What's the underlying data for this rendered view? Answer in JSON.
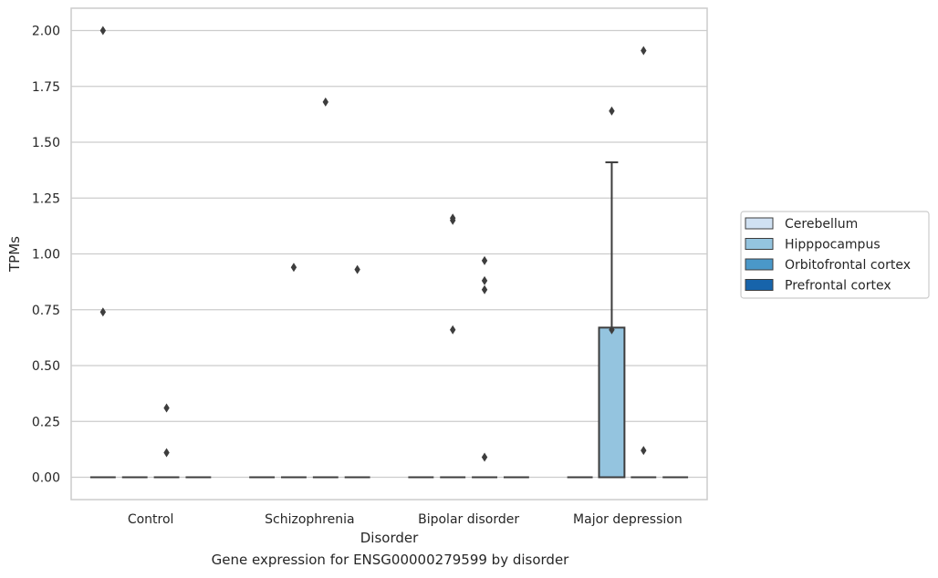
{
  "chart_data": {
    "type": "box",
    "title": "",
    "caption": "Gene expression for ENSG00000279599 by disorder",
    "xlabel": "Disorder",
    "ylabel": "TPMs",
    "categories": [
      "Control",
      "Schizophrenia",
      "Bipolar disorder",
      "Major depression"
    ],
    "ylim": [
      -0.1,
      2.1
    ],
    "yticks": [
      0.0,
      0.25,
      0.5,
      0.75,
      1.0,
      1.25,
      1.5,
      1.75,
      2.0
    ],
    "ytick_labels": [
      "0.00",
      "0.25",
      "0.50",
      "0.75",
      "1.00",
      "1.25",
      "1.50",
      "1.75",
      "2.00"
    ],
    "grid": true,
    "legend_position": "right",
    "series": [
      {
        "name": "Cerebellum",
        "color": "#d0e1f2",
        "boxes": [
          {
            "category": "Control",
            "q1": 0,
            "median": 0,
            "q3": 0,
            "whisker_low": 0,
            "whisker_high": 0,
            "outliers": [
              2.0,
              0.74
            ]
          },
          {
            "category": "Schizophrenia",
            "q1": 0,
            "median": 0,
            "q3": 0,
            "whisker_low": 0,
            "whisker_high": 0,
            "outliers": []
          },
          {
            "category": "Bipolar disorder",
            "q1": 0,
            "median": 0,
            "q3": 0,
            "whisker_low": 0,
            "whisker_high": 0,
            "outliers": []
          },
          {
            "category": "Major depression",
            "q1": 0,
            "median": 0,
            "q3": 0,
            "whisker_low": 0,
            "whisker_high": 0,
            "outliers": []
          }
        ]
      },
      {
        "name": "Hipppocampus",
        "color": "#94c4df",
        "boxes": [
          {
            "category": "Control",
            "q1": 0,
            "median": 0,
            "q3": 0,
            "whisker_low": 0,
            "whisker_high": 0,
            "outliers": []
          },
          {
            "category": "Schizophrenia",
            "q1": 0,
            "median": 0,
            "q3": 0,
            "whisker_low": 0,
            "whisker_high": 0,
            "outliers": [
              0.94
            ]
          },
          {
            "category": "Bipolar disorder",
            "q1": 0,
            "median": 0,
            "q3": 0,
            "whisker_low": 0,
            "whisker_high": 0,
            "outliers": [
              1.16,
              1.15,
              0.66
            ]
          },
          {
            "category": "Major depression",
            "q1": 0,
            "median": 0,
            "q3": 0.67,
            "whisker_low": 0,
            "whisker_high": 1.41,
            "outliers": [
              1.64,
              0.66
            ]
          }
        ]
      },
      {
        "name": "Orbitofrontal cortex",
        "color": "#4a98c9",
        "boxes": [
          {
            "category": "Control",
            "q1": 0,
            "median": 0,
            "q3": 0,
            "whisker_low": 0,
            "whisker_high": 0,
            "outliers": [
              0.31,
              0.11
            ]
          },
          {
            "category": "Schizophrenia",
            "q1": 0,
            "median": 0,
            "q3": 0,
            "whisker_low": 0,
            "whisker_high": 0,
            "outliers": [
              1.68
            ]
          },
          {
            "category": "Bipolar disorder",
            "q1": 0,
            "median": 0,
            "q3": 0,
            "whisker_low": 0,
            "whisker_high": 0,
            "outliers": [
              0.97,
              0.88,
              0.84,
              0.09
            ]
          },
          {
            "category": "Major depression",
            "q1": 0,
            "median": 0,
            "q3": 0,
            "whisker_low": 0,
            "whisker_high": 0,
            "outliers": [
              1.91,
              0.12
            ]
          }
        ]
      },
      {
        "name": "Prefrontal cortex",
        "color": "#1764ab",
        "boxes": [
          {
            "category": "Control",
            "q1": 0,
            "median": 0,
            "q3": 0,
            "whisker_low": 0,
            "whisker_high": 0,
            "outliers": []
          },
          {
            "category": "Schizophrenia",
            "q1": 0,
            "median": 0,
            "q3": 0,
            "whisker_low": 0,
            "whisker_high": 0,
            "outliers": [
              0.93
            ]
          },
          {
            "category": "Bipolar disorder",
            "q1": 0,
            "median": 0,
            "q3": 0,
            "whisker_low": 0,
            "whisker_high": 0,
            "outliers": []
          },
          {
            "category": "Major depression",
            "q1": 0,
            "median": 0,
            "q3": 0,
            "whisker_low": 0,
            "whisker_high": 0,
            "outliers": []
          }
        ]
      }
    ],
    "colors": {
      "grid": "#cccccc",
      "frame": "#cccccc",
      "box_edge": "#3d3d3d",
      "marker": "#3d3d3d"
    }
  }
}
